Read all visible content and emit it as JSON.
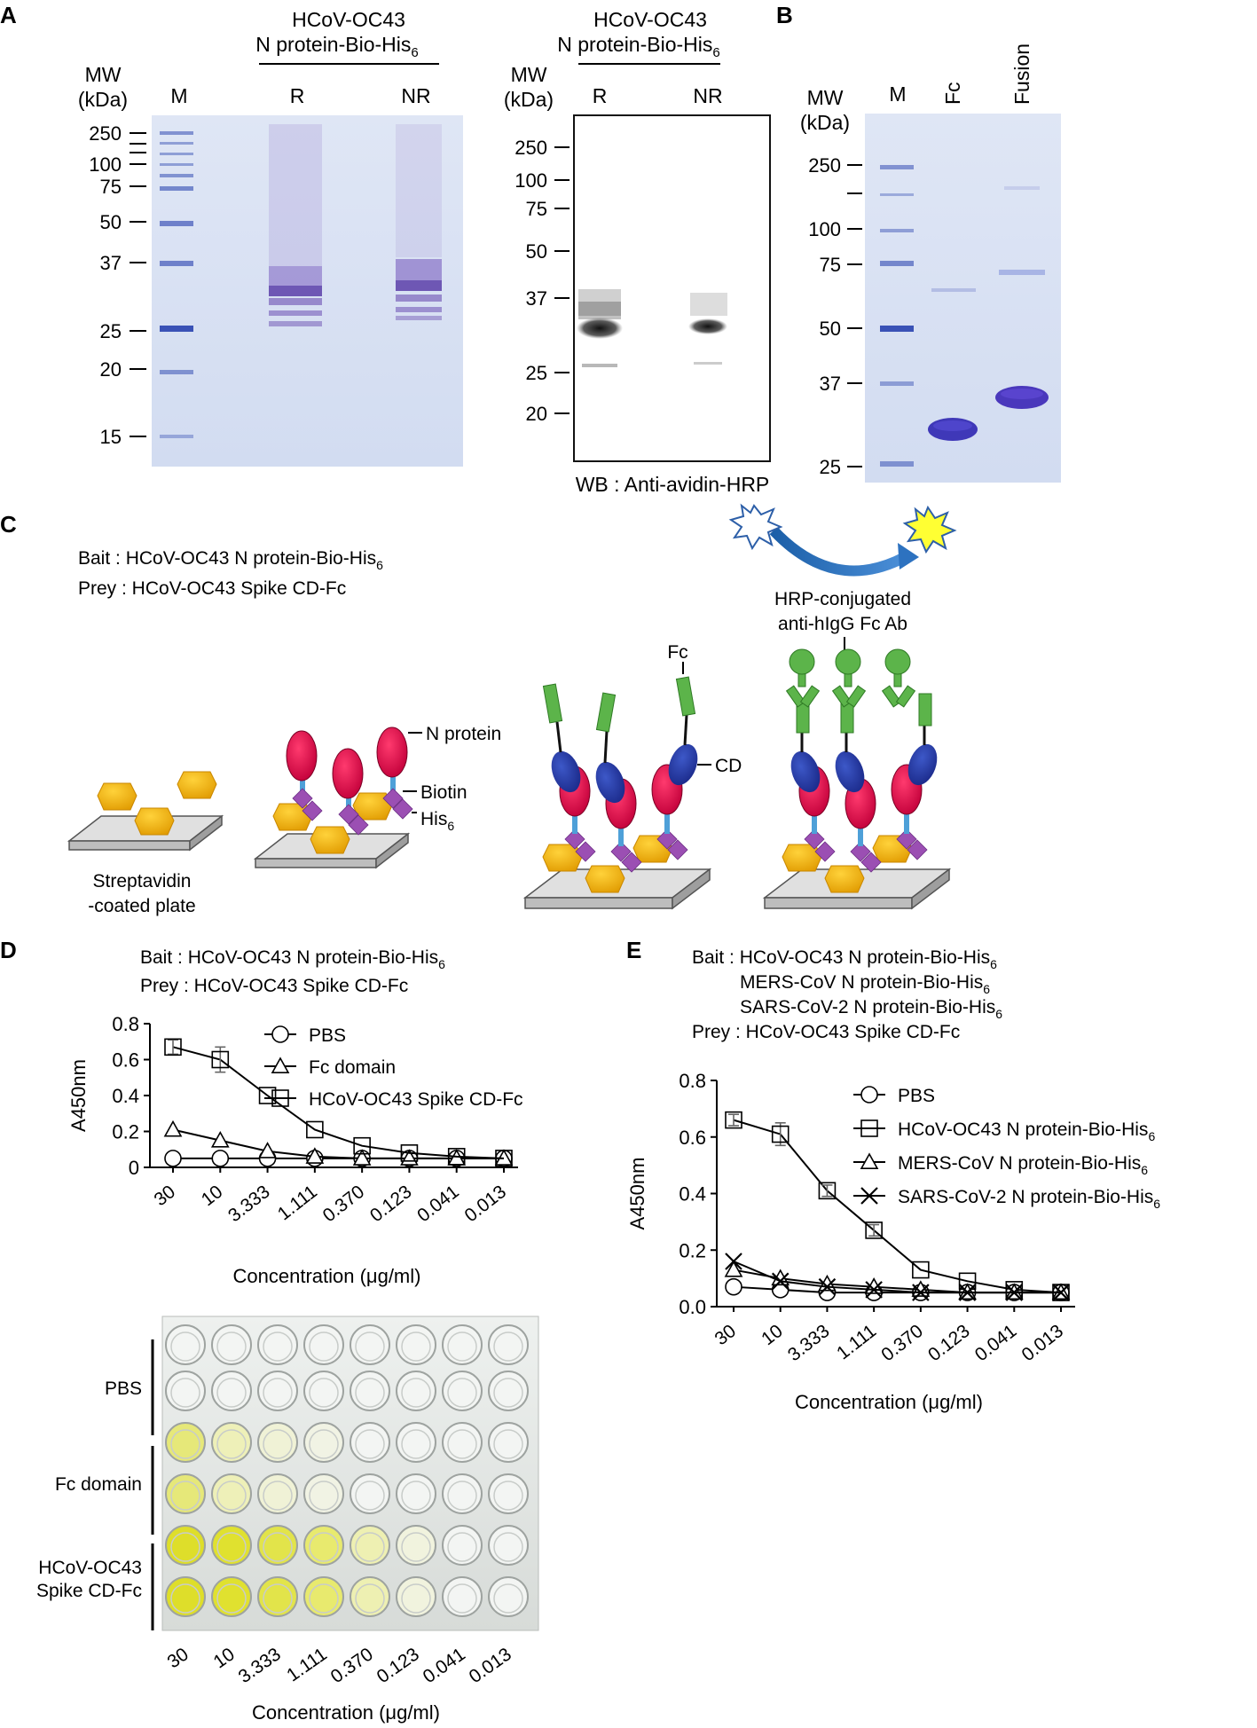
{
  "panels": {
    "a": "A",
    "b": "B",
    "c": "C",
    "d": "D",
    "e": "E"
  },
  "panel_a": {
    "gel1": {
      "header_line1": "HCoV-OC43",
      "header_line2": "N protein-Bio-His",
      "header_sub": "6",
      "mw_line1": "MW",
      "mw_line2": "(kDa)",
      "lanes": [
        "M",
        "R",
        "NR"
      ],
      "markers": [
        "250",
        "100",
        "75",
        "50",
        "37",
        "25",
        "20",
        "15"
      ]
    },
    "blot": {
      "header_line1": "HCoV-OC43",
      "header_line2": "N protein-Bio-His",
      "header_sub": "6",
      "mw_line1": "MW",
      "mw_line2": "(kDa)",
      "lanes": [
        "R",
        "NR"
      ],
      "markers": [
        "250",
        "100",
        "75",
        "50",
        "37",
        "25",
        "20"
      ],
      "caption": "WB : Anti-avidin-HRP"
    }
  },
  "panel_b": {
    "mw_line1": "MW",
    "mw_line2": "(kDa)",
    "lanes": [
      "M",
      "Fc",
      "Fusion"
    ],
    "markers": [
      "250",
      "100",
      "75",
      "50",
      "37",
      "25"
    ]
  },
  "panel_c": {
    "bait": "Bait : HCoV-OC43 N protein-Bio-His",
    "bait_sub": "6",
    "prey": "Prey : HCoV-OC43  Spike CD-Fc",
    "plate_line1": "Streptavidin",
    "plate_line2": "-coated plate",
    "n_protein": "N protein",
    "biotin": "Biotin",
    "his": "His",
    "his_sub": "6",
    "fc": "Fc",
    "cd": "CD",
    "hrp_line1": "HRP-conjugated",
    "hrp_line2": "anti-hIgG Fc Ab"
  },
  "panel_d": {
    "bait": "Bait : HCoV-OC43 N protein-Bio-His",
    "bait_sub": "6",
    "prey": "Prey : HCoV-OC43 Spike CD-Fc",
    "plate_rows": [
      "PBS",
      "Fc domain",
      "HCoV-OC43",
      "Spike CD-Fc"
    ],
    "plate_xlabels": [
      "30",
      "10",
      "3.333",
      "1.111",
      "0.370",
      "0.123",
      "0.041",
      "0.013"
    ],
    "plate_xlabel": "Concentration (μg/ml)"
  },
  "panel_e": {
    "bait_line1": "Bait : HCoV-OC43 N protein-Bio-His",
    "bait_line2": "MERS-CoV N protein-Bio-His",
    "bait_line3": "SARS-CoV-2 N protein-Bio-His",
    "bait_sub": "6",
    "prey": "Prey : HCoV-OC43 Spike CD-Fc"
  },
  "chart_data": [
    {
      "type": "line",
      "panel": "D",
      "categories": [
        "30",
        "10",
        "3.333",
        "1.111",
        "0.370",
        "0.123",
        "0.041",
        "0.013"
      ],
      "xlabel": "Concentration (μg/ml)",
      "ylabel": "A450nm",
      "ylim": [
        0,
        0.8
      ],
      "yticks": [
        "0",
        "0.2",
        "0.4",
        "0.6",
        "0.8"
      ],
      "legend_position": "top-right",
      "series": [
        {
          "name": "PBS",
          "marker": "circle",
          "values": [
            0.05,
            0.05,
            0.05,
            0.05,
            0.05,
            0.05,
            0.05,
            0.05
          ],
          "errors": [
            0,
            0,
            0,
            0,
            0,
            0,
            0,
            0
          ]
        },
        {
          "name": "Fc domain",
          "marker": "triangle",
          "values": [
            0.21,
            0.15,
            0.09,
            0.06,
            0.05,
            0.05,
            0.05,
            0.05
          ],
          "errors": [
            0,
            0,
            0,
            0,
            0,
            0,
            0,
            0
          ]
        },
        {
          "name": "HCoV-OC43 Spike CD-Fc",
          "marker": "square",
          "values": [
            0.67,
            0.6,
            0.4,
            0.21,
            0.12,
            0.08,
            0.06,
            0.05
          ],
          "errors": [
            0.04,
            0.07,
            0,
            0,
            0,
            0,
            0,
            0
          ]
        }
      ]
    },
    {
      "type": "line",
      "panel": "E",
      "categories": [
        "30",
        "10",
        "3.333",
        "1.111",
        "0.370",
        "0.123",
        "0.041",
        "0.013"
      ],
      "xlabel": "Concentration (μg/ml)",
      "ylabel": "A450nm",
      "ylim": [
        0,
        0.8
      ],
      "yticks": [
        "0.0",
        "0.2",
        "0.4",
        "0.6",
        "0.8"
      ],
      "legend_position": "top-right",
      "series": [
        {
          "name": "PBS",
          "sub": "",
          "marker": "circle",
          "values": [
            0.07,
            0.06,
            0.05,
            0.05,
            0.05,
            0.05,
            0.05,
            0.05
          ],
          "errors": [
            0,
            0,
            0,
            0,
            0,
            0,
            0,
            0
          ]
        },
        {
          "name": "HCoV-OC43 N protein-Bio-His",
          "sub": "6",
          "marker": "square",
          "values": [
            0.66,
            0.61,
            0.41,
            0.27,
            0.13,
            0.09,
            0.06,
            0.05
          ],
          "errors": [
            0.02,
            0.04,
            0.02,
            0.02,
            0,
            0,
            0,
            0
          ]
        },
        {
          "name": "MERS-CoV N protein-Bio-His",
          "sub": "6",
          "marker": "triangle",
          "values": [
            0.13,
            0.1,
            0.08,
            0.07,
            0.06,
            0.05,
            0.05,
            0.05
          ],
          "errors": [
            0,
            0,
            0,
            0,
            0,
            0,
            0,
            0
          ]
        },
        {
          "name": "SARS-CoV-2 N protein-Bio-His",
          "sub": "6",
          "marker": "x",
          "values": [
            0.16,
            0.09,
            0.07,
            0.06,
            0.05,
            0.05,
            0.05,
            0.05
          ],
          "errors": [
            0,
            0,
            0,
            0,
            0,
            0,
            0,
            0
          ]
        }
      ]
    }
  ]
}
